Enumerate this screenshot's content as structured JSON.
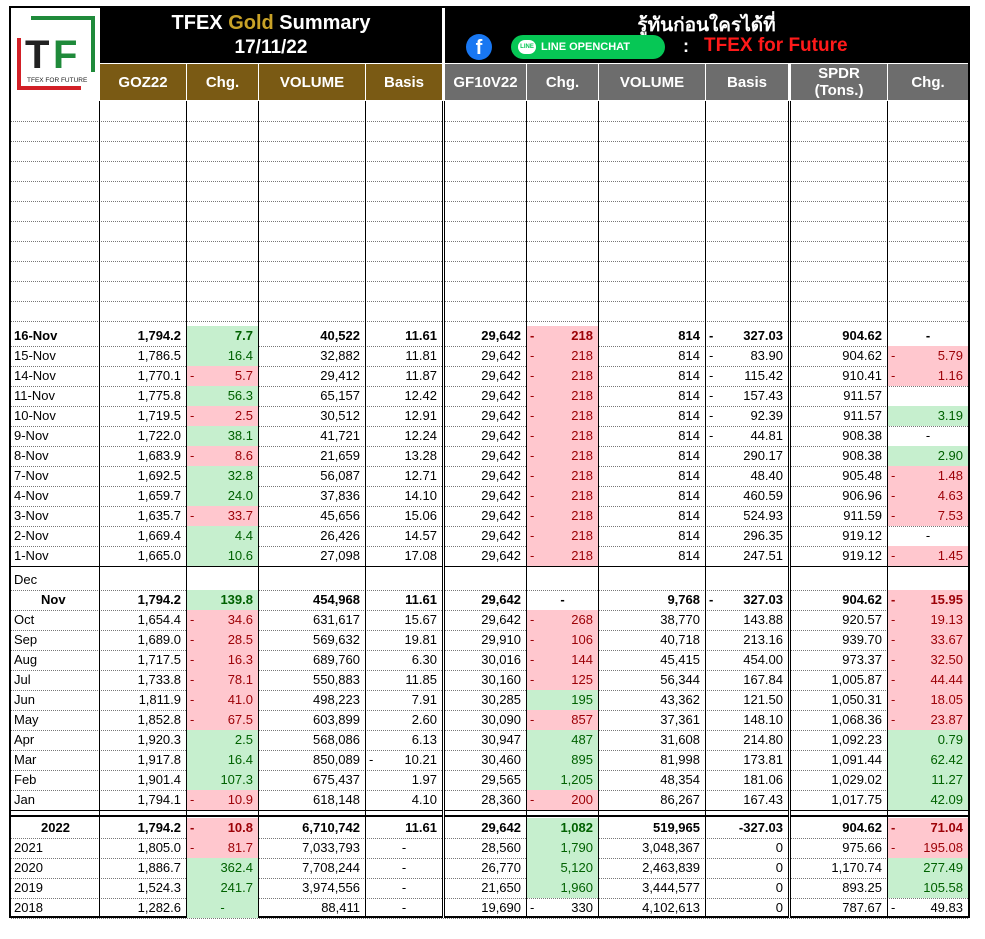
{
  "header": {
    "title_prefix": "TFEX ",
    "title_gold": "Gold",
    "title_suffix": " Summary",
    "date": "17/11/22",
    "promo_text": "รู้ทันก่อนใครได้ที่",
    "line_button": "LINE OPENCHAT",
    "line_badge": "LINE",
    "facebook_glyph": "f",
    "colon": ":",
    "page_name": "TFEX for Future",
    "logo_letters": "TF",
    "logo_caption": "TFEX FOR FUTURE"
  },
  "columns": {
    "goz": "GOZ22",
    "chg1": "Chg.",
    "vol1": "VOLUME",
    "basis1": "Basis",
    "gf": "GF10V22",
    "chg2": "Chg.",
    "vol2": "VOLUME",
    "basis2": "Basis",
    "spdr": "SPDR",
    "spdr_unit": "(Tons.)",
    "chg3": "Chg."
  },
  "daily": [
    {
      "label": "16-Nov",
      "goz": "1,794.2",
      "chg1": "7.7",
      "chg1_s": "g",
      "chg1_neg": false,
      "vol1": "40,522",
      "basis1": "11.61",
      "basis1_neg": false,
      "gf": "29,642",
      "chg2": "218",
      "chg2_s": "p",
      "chg2_neg": true,
      "vol2": "814",
      "basis2": "327.03",
      "basis2_neg": true,
      "spdr": "904.62",
      "chg3": "-",
      "chg3_s": "",
      "chg3_neg": false,
      "chg3_center": true,
      "bold": true
    },
    {
      "label": "15-Nov",
      "goz": "1,786.5",
      "chg1": "16.4",
      "chg1_s": "g",
      "vol1": "32,882",
      "basis1": "11.81",
      "gf": "29,642",
      "chg2": "218",
      "chg2_s": "p",
      "chg2_neg": true,
      "vol2": "814",
      "basis2": "83.90",
      "basis2_neg": true,
      "spdr": "904.62",
      "chg3": "5.79",
      "chg3_s": "p",
      "chg3_neg": true
    },
    {
      "label": "14-Nov",
      "goz": "1,770.1",
      "chg1": "5.7",
      "chg1_s": "p",
      "chg1_neg": true,
      "vol1": "29,412",
      "basis1": "11.87",
      "gf": "29,642",
      "chg2": "218",
      "chg2_s": "p",
      "chg2_neg": true,
      "vol2": "814",
      "basis2": "115.42",
      "basis2_neg": true,
      "spdr": "910.41",
      "chg3": "1.16",
      "chg3_s": "p",
      "chg3_neg": true
    },
    {
      "label": "11-Nov",
      "goz": "1,775.8",
      "chg1": "56.3",
      "chg1_s": "g",
      "vol1": "65,157",
      "basis1": "12.42",
      "gf": "29,642",
      "chg2": "218",
      "chg2_s": "p",
      "chg2_neg": true,
      "vol2": "814",
      "basis2": "157.43",
      "basis2_neg": true,
      "spdr": "911.57",
      "chg3": "",
      "chg3_s": ""
    },
    {
      "label": "10-Nov",
      "goz": "1,719.5",
      "chg1": "2.5",
      "chg1_s": "p",
      "chg1_neg": true,
      "vol1": "30,512",
      "basis1": "12.91",
      "gf": "29,642",
      "chg2": "218",
      "chg2_s": "p",
      "chg2_neg": true,
      "vol2": "814",
      "basis2": "92.39",
      "basis2_neg": true,
      "spdr": "911.57",
      "chg3": "3.19",
      "chg3_s": "g"
    },
    {
      "label": "9-Nov",
      "goz": "1,722.0",
      "chg1": "38.1",
      "chg1_s": "g",
      "vol1": "41,721",
      "basis1": "12.24",
      "gf": "29,642",
      "chg2": "218",
      "chg2_s": "p",
      "chg2_neg": true,
      "vol2": "814",
      "basis2": "44.81",
      "basis2_neg": true,
      "spdr": "908.38",
      "chg3": "-",
      "chg3_s": "",
      "chg3_center": true
    },
    {
      "label": "8-Nov",
      "goz": "1,683.9",
      "chg1": "8.6",
      "chg1_s": "p",
      "chg1_neg": true,
      "vol1": "21,659",
      "basis1": "13.28",
      "gf": "29,642",
      "chg2": "218",
      "chg2_s": "p",
      "chg2_neg": true,
      "vol2": "814",
      "basis2": "290.17",
      "spdr": "908.38",
      "chg3": "2.90",
      "chg3_s": "g"
    },
    {
      "label": "7-Nov",
      "goz": "1,692.5",
      "chg1": "32.8",
      "chg1_s": "g",
      "vol1": "56,087",
      "basis1": "12.71",
      "gf": "29,642",
      "chg2": "218",
      "chg2_s": "p",
      "chg2_neg": true,
      "vol2": "814",
      "basis2": "48.40",
      "spdr": "905.48",
      "chg3": "1.48",
      "chg3_s": "p",
      "chg3_neg": true
    },
    {
      "label": "4-Nov",
      "goz": "1,659.7",
      "chg1": "24.0",
      "chg1_s": "g",
      "vol1": "37,836",
      "basis1": "14.10",
      "gf": "29,642",
      "chg2": "218",
      "chg2_s": "p",
      "chg2_neg": true,
      "vol2": "814",
      "basis2": "460.59",
      "spdr": "906.96",
      "chg3": "4.63",
      "chg3_s": "p",
      "chg3_neg": true
    },
    {
      "label": "3-Nov",
      "goz": "1,635.7",
      "chg1": "33.7",
      "chg1_s": "p",
      "chg1_neg": true,
      "vol1": "45,656",
      "basis1": "15.06",
      "gf": "29,642",
      "chg2": "218",
      "chg2_s": "p",
      "chg2_neg": true,
      "vol2": "814",
      "basis2": "524.93",
      "spdr": "911.59",
      "chg3": "7.53",
      "chg3_s": "p",
      "chg3_neg": true
    },
    {
      "label": "2-Nov",
      "goz": "1,669.4",
      "chg1": "4.4",
      "chg1_s": "g",
      "vol1": "26,426",
      "basis1": "14.57",
      "gf": "29,642",
      "chg2": "218",
      "chg2_s": "p",
      "chg2_neg": true,
      "vol2": "814",
      "basis2": "296.35",
      "spdr": "919.12",
      "chg3": "-",
      "chg3_s": "",
      "chg3_center": true
    },
    {
      "label": "1-Nov",
      "goz": "1,665.0",
      "chg1": "10.6",
      "chg1_s": "g",
      "vol1": "27,098",
      "basis1": "17.08",
      "gf": "29,642",
      "chg2": "218",
      "chg2_s": "p",
      "chg2_neg": true,
      "vol2": "814",
      "basis2": "247.51",
      "spdr": "919.12",
      "chg3": "1.45",
      "chg3_s": "p",
      "chg3_neg": true
    }
  ],
  "monthly": [
    {
      "label": "Dec",
      "goz": "",
      "chg1": "",
      "chg1_s": "",
      "vol1": "",
      "basis1": "",
      "gf": "",
      "chg2": "",
      "chg2_s": "",
      "vol2": "",
      "basis2": "",
      "spdr": "",
      "chg3": "",
      "chg3_s": ""
    },
    {
      "label": "Nov",
      "indent": true,
      "bold": true,
      "goz": "1,794.2",
      "chg1": "139.8",
      "chg1_s": "g",
      "vol1": "454,968",
      "basis1": "11.61",
      "gf": "29,642",
      "chg2": "-",
      "chg2_s": "",
      "chg2_center": true,
      "vol2": "9,768",
      "basis2": "327.03",
      "basis2_neg": true,
      "spdr": "904.62",
      "chg3": "15.95",
      "chg3_s": "p",
      "chg3_neg": true
    },
    {
      "label": "Oct",
      "goz": "1,654.4",
      "chg1": "34.6",
      "chg1_s": "p",
      "chg1_neg": true,
      "vol1": "631,617",
      "basis1": "15.67",
      "gf": "29,642",
      "chg2": "268",
      "chg2_s": "p",
      "chg2_neg": true,
      "vol2": "38,770",
      "basis2": "143.88",
      "spdr": "920.57",
      "chg3": "19.13",
      "chg3_s": "p",
      "chg3_neg": true
    },
    {
      "label": "Sep",
      "goz": "1,689.0",
      "chg1": "28.5",
      "chg1_s": "p",
      "chg1_neg": true,
      "vol1": "569,632",
      "basis1": "19.81",
      "gf": "29,910",
      "chg2": "106",
      "chg2_s": "p",
      "chg2_neg": true,
      "vol2": "40,718",
      "basis2": "213.16",
      "spdr": "939.70",
      "chg3": "33.67",
      "chg3_s": "p",
      "chg3_neg": true
    },
    {
      "label": "Aug",
      "goz": "1,717.5",
      "chg1": "16.3",
      "chg1_s": "p",
      "chg1_neg": true,
      "vol1": "689,760",
      "basis1": "6.30",
      "gf": "30,016",
      "chg2": "144",
      "chg2_s": "p",
      "chg2_neg": true,
      "vol2": "45,415",
      "basis2": "454.00",
      "spdr": "973.37",
      "chg3": "32.50",
      "chg3_s": "p",
      "chg3_neg": true
    },
    {
      "label": "Jul",
      "goz": "1,733.8",
      "chg1": "78.1",
      "chg1_s": "p",
      "chg1_neg": true,
      "vol1": "550,883",
      "basis1": "11.85",
      "gf": "30,160",
      "chg2": "125",
      "chg2_s": "p",
      "chg2_neg": true,
      "vol2": "56,344",
      "basis2": "167.84",
      "spdr": "1,005.87",
      "chg3": "44.44",
      "chg3_s": "p",
      "chg3_neg": true
    },
    {
      "label": "Jun",
      "goz": "1,811.9",
      "chg1": "41.0",
      "chg1_s": "p",
      "chg1_neg": true,
      "vol1": "498,223",
      "basis1": "7.91",
      "gf": "30,285",
      "chg2": "195",
      "chg2_s": "g",
      "vol2": "43,362",
      "basis2": "121.50",
      "spdr": "1,050.31",
      "chg3": "18.05",
      "chg3_s": "p",
      "chg3_neg": true
    },
    {
      "label": "May",
      "goz": "1,852.8",
      "chg1": "67.5",
      "chg1_s": "p",
      "chg1_neg": true,
      "vol1": "603,899",
      "basis1": "2.60",
      "gf": "30,090",
      "chg2": "857",
      "chg2_s": "p",
      "chg2_neg": true,
      "vol2": "37,361",
      "basis2": "148.10",
      "spdr": "1,068.36",
      "chg3": "23.87",
      "chg3_s": "p",
      "chg3_neg": true
    },
    {
      "label": "Apr",
      "goz": "1,920.3",
      "chg1": "2.5",
      "chg1_s": "g",
      "vol1": "568,086",
      "basis1": "6.13",
      "gf": "30,947",
      "chg2": "487",
      "chg2_s": "g",
      "vol2": "31,608",
      "basis2": "214.80",
      "spdr": "1,092.23",
      "chg3": "0.79",
      "chg3_s": "g"
    },
    {
      "label": "Mar",
      "goz": "1,917.8",
      "chg1": "16.4",
      "chg1_s": "g",
      "vol1": "850,089",
      "basis1": "10.21",
      "basis1_neg": true,
      "gf": "30,460",
      "chg2": "895",
      "chg2_s": "g",
      "vol2": "81,998",
      "basis2": "173.81",
      "spdr": "1,091.44",
      "chg3": "62.42",
      "chg3_s": "g"
    },
    {
      "label": "Feb",
      "goz": "1,901.4",
      "chg1": "107.3",
      "chg1_s": "g",
      "vol1": "675,437",
      "basis1": "1.97",
      "gf": "29,565",
      "chg2": "1,205",
      "chg2_s": "g",
      "vol2": "48,354",
      "basis2": "181.06",
      "spdr": "1,029.02",
      "chg3": "11.27",
      "chg3_s": "g"
    },
    {
      "label": "Jan",
      "goz": "1,794.1",
      "chg1": "10.9",
      "chg1_s": "p",
      "chg1_neg": true,
      "vol1": "618,148",
      "basis1": "4.10",
      "gf": "28,360",
      "chg2": "200",
      "chg2_s": "p",
      "chg2_neg": true,
      "vol2": "86,267",
      "basis2": "167.43",
      "spdr": "1,017.75",
      "chg3": "42.09",
      "chg3_s": "g"
    }
  ],
  "yearly": [
    {
      "label": "2022",
      "indent": true,
      "bold": true,
      "goz": "1,794.2",
      "chg1": "10.8",
      "chg1_s": "p",
      "chg1_neg": true,
      "vol1": "6,710,742",
      "basis1": "11.61",
      "gf": "29,642",
      "chg2": "1,082",
      "chg2_s": "g",
      "vol2": "519,965",
      "basis2": "-327.03",
      "spdr": "904.62",
      "chg3": "71.04",
      "chg3_s": "p",
      "chg3_neg": true
    },
    {
      "label": "2021",
      "goz": "1,805.0",
      "chg1": "81.7",
      "chg1_s": "p",
      "chg1_neg": true,
      "vol1": "7,033,793",
      "basis1": "-",
      "basis1_center": true,
      "gf": "28,560",
      "chg2": "1,790",
      "chg2_s": "g",
      "vol2": "3,048,367",
      "basis2": "0",
      "spdr": "975.66",
      "chg3": "195.08",
      "chg3_s": "p",
      "chg3_neg": true
    },
    {
      "label": "2020",
      "goz": "1,886.7",
      "chg1": "362.4",
      "chg1_s": "g",
      "vol1": "7,708,244",
      "basis1": "-",
      "basis1_center": true,
      "gf": "26,770",
      "chg2": "5,120",
      "chg2_s": "g",
      "vol2": "2,463,839",
      "basis2": "0",
      "spdr": "1,170.74",
      "chg3": "277.49",
      "chg3_s": "g"
    },
    {
      "label": "2019",
      "goz": "1,524.3",
      "chg1": "241.7",
      "chg1_s": "g",
      "vol1": "3,974,556",
      "basis1": "-",
      "basis1_center": true,
      "gf": "21,650",
      "chg2": "1,960",
      "chg2_s": "g",
      "vol2": "3,444,577",
      "basis2": "0",
      "spdr": "893.25",
      "chg3": "105.58",
      "chg3_s": "g"
    },
    {
      "label": "2018",
      "goz": "1,282.6",
      "chg1": "-",
      "chg1_s": "g",
      "chg1_center": true,
      "vol1": "88,411",
      "basis1": "-",
      "basis1_center": true,
      "gf": "19,690",
      "chg2": "330",
      "chg2_s": "",
      "chg2_neg": true,
      "vol2": "4,102,613",
      "basis2": "0",
      "spdr": "787.67",
      "chg3": "49.83",
      "chg3_s": "",
      "chg3_neg": true
    }
  ],
  "colors": {
    "gold_header": "#7a5a14",
    "grey_header": "#6d6d6d",
    "pos_fill": "#c6efce",
    "neg_fill": "#ffc7ce",
    "logo_green": "#1f8a3a",
    "logo_red": "#d21f26"
  }
}
